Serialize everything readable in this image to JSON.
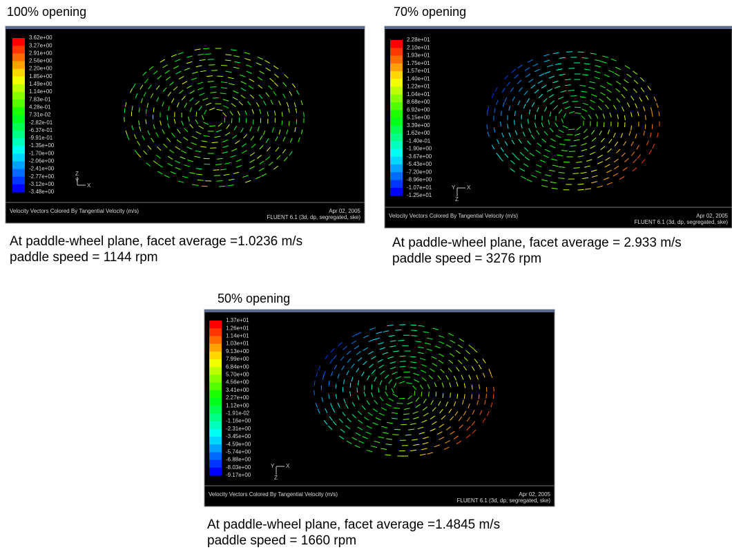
{
  "panels": [
    {
      "heading": "100% opening",
      "colorbar": [
        "3.62e+00",
        "3.27e+00",
        "2.91e+00",
        "2.56e+00",
        "2.20e+00",
        "1.85e+00",
        "1.49e+00",
        "1.14e+00",
        "7.83e-01",
        "4.28e-01",
        "7.31e-02",
        "-2.82e-01",
        "-6.37e-01",
        "-9.91e-01",
        "-1.35e+00",
        "-1.70e+00",
        "-2.06e+00",
        "-2.41e+00",
        "-2.77e+00",
        "-3.12e+00",
        "-3.48e+00"
      ],
      "axes": {
        "z": "Z",
        "y": "Y",
        "x": "X"
      },
      "footer_left": "Velocity Vectors Colored By Tangential Velocity (m/s)",
      "footer_date": "Apr 02, 2005",
      "footer_solver": "FLUENT 6.1 (3d, dp, segregated, ske)",
      "caption": [
        "At paddle-wheel plane, facet average =1.0236 m/s",
        "paddle speed = 1144 rpm"
      ]
    },
    {
      "heading": "70% opening",
      "colorbar": [
        "2.28e+01",
        "2.10e+01",
        "1.93e+01",
        "1.75e+01",
        "1.57e+01",
        "1.40e+01",
        "1.22e+01",
        "1.04e+01",
        "8.68e+00",
        "6.92e+00",
        "5.15e+00",
        "3.39e+00",
        "1.62e+00",
        "-1.40e-01",
        "-1.90e+00",
        "-3.67e+00",
        "-5.43e+00",
        "-7.20e+00",
        "-8.96e+00",
        "-1.07e+01",
        "-1.25e+01"
      ],
      "axes": {
        "z": "Z",
        "y": "Y",
        "x": "X"
      },
      "footer_left": "Velocity Vectors Colored By Tangential Velocity (m/s)",
      "footer_date": "Apr 02, 2005",
      "footer_solver": "FLUENT 6.1 (3d, dp, segregated, ske)",
      "caption": [
        "At paddle-wheel plane, facet average = 2.933 m/s",
        "paddle speed = 3276 rpm"
      ]
    },
    {
      "heading": "50% opening",
      "colorbar": [
        "1.37e+01",
        "1.26e+01",
        "1.14e+01",
        "1.03e+01",
        "9.13e+00",
        "7.99e+00",
        "6.84e+00",
        "5.70e+00",
        "4.56e+00",
        "3.41e+00",
        "2.27e+00",
        "1.12e+00",
        "-1.91e-02",
        "-1.16e+00",
        "-2.31e+00",
        "-3.45e+00",
        "-4.59e+00",
        "-5.74e+00",
        "-6.88e+00",
        "-8.03e+00",
        "-9.17e+00"
      ],
      "axes": {
        "z": "Z",
        "y": "Y",
        "x": "X"
      },
      "footer_left": "Velocity Vectors Colored By Tangential Velocity (m/s)",
      "footer_date": "Apr 02, 2005",
      "footer_solver": "FLUENT 6.1 (3d, dp, segregated, ske)",
      "caption": [
        "At paddle-wheel plane, facet average =1.4845 m/s",
        "paddle speed = 1660 rpm"
      ]
    }
  ]
}
